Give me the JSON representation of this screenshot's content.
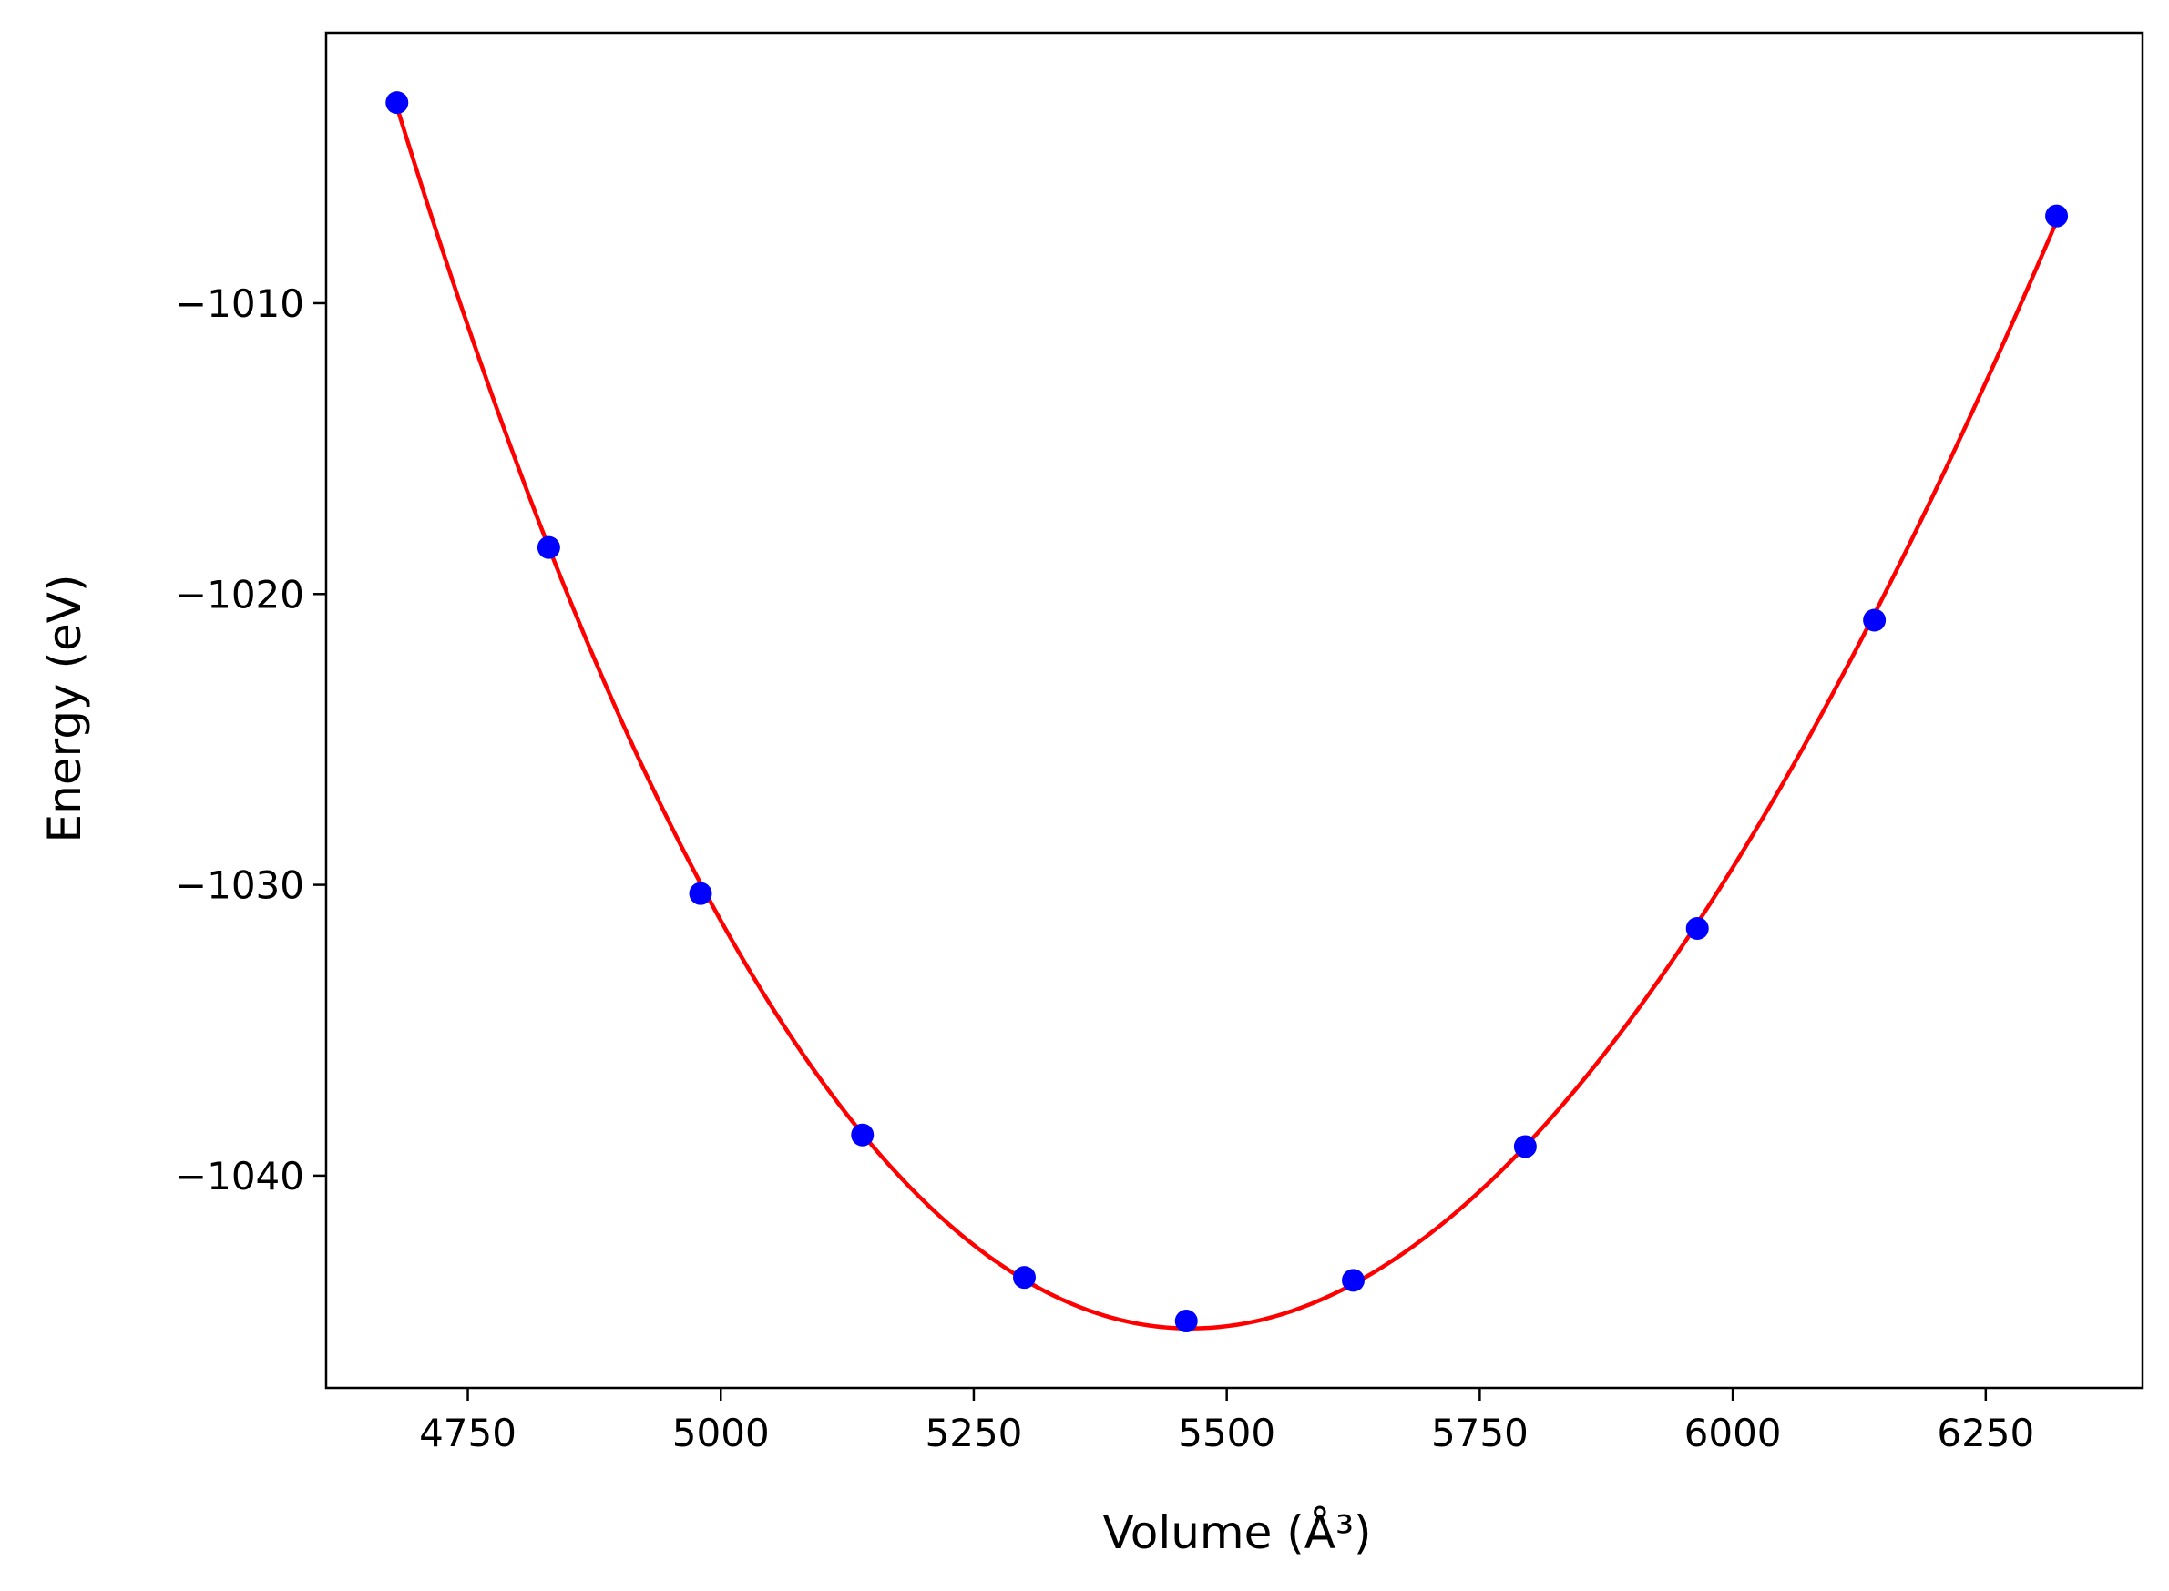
{
  "chart_data": {
    "type": "scatter",
    "title": "",
    "xlabel": "Volume (Å³)",
    "ylabel": "Energy (eV)",
    "xlim": [
      4610,
      6405
    ],
    "ylim": [
      -1047.3,
      -1000.7
    ],
    "x_ticks": [
      4750,
      5000,
      5250,
      5500,
      5750,
      6000,
      6250
    ],
    "x_tick_labels": [
      "4750",
      "5000",
      "5250",
      "5500",
      "5750",
      "6000",
      "6250"
    ],
    "y_ticks": [
      -1010,
      -1020,
      -1030,
      -1040
    ],
    "y_tick_labels": [
      "−1010",
      "−1020",
      "−1030",
      "−1040"
    ],
    "grid": false,
    "legend": "none",
    "series": [
      {
        "kind": "points",
        "color": "#0000ff",
        "x": [
          4680,
          4830,
          4980,
          5140,
          5300,
          5460,
          5625,
          5795,
          5965,
          6140,
          6320
        ],
        "y": [
          -1003.1,
          -1018.4,
          -1030.3,
          -1038.6,
          -1043.5,
          -1045.0,
          -1043.6,
          -1039.0,
          -1031.5,
          -1020.9,
          -1007.0
        ]
      },
      {
        "kind": "fit-line",
        "color": "#ff0000",
        "x": [
          4680,
          4830,
          4980,
          5140,
          5300,
          5460,
          5625,
          5795,
          5965,
          6140,
          6320
        ],
        "y": [
          -1003.1,
          -1018.4,
          -1030.3,
          -1038.6,
          -1043.5,
          -1045.0,
          -1043.6,
          -1039.0,
          -1031.5,
          -1020.9,
          -1007.0
        ]
      }
    ]
  }
}
